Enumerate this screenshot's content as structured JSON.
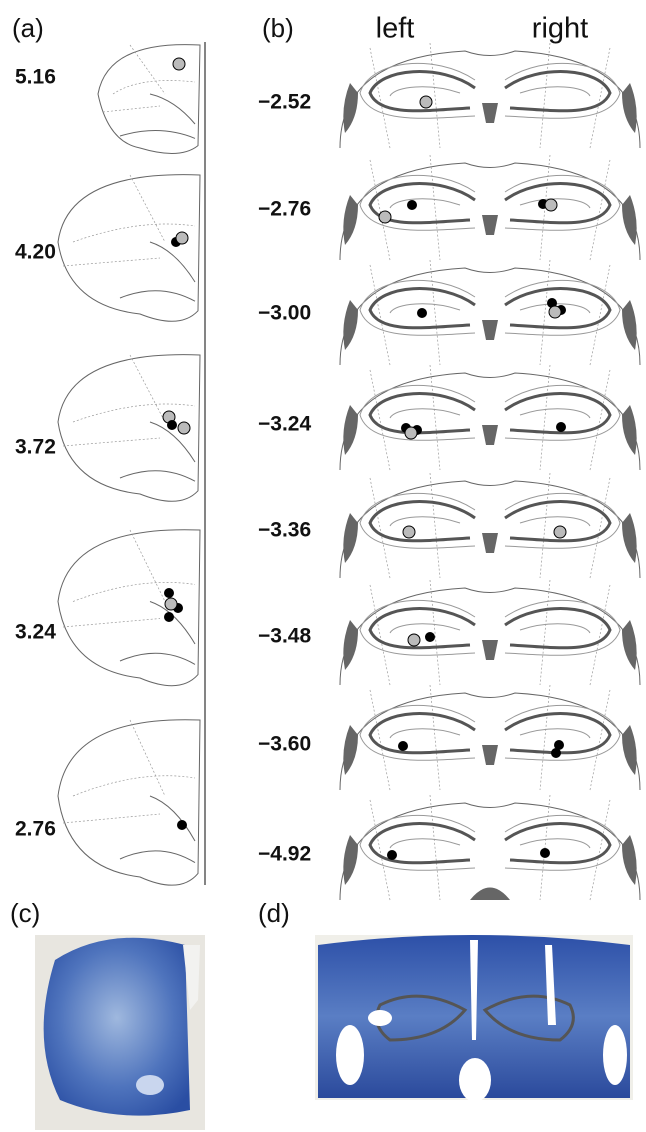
{
  "panels": [
    {
      "label": "(a)",
      "sections": [
        "5.16",
        "4.20",
        "3.72",
        "3.24",
        "2.76"
      ]
    },
    {
      "label": "(b)",
      "sides": [
        "left",
        "right"
      ],
      "sections": [
        "−2.52",
        "−2.76",
        "−3.00",
        "−3.24",
        "−3.36",
        "−3.48",
        "−3.60",
        "−4.92"
      ]
    },
    {
      "label": "(c)"
    },
    {
      "label": "(d)"
    }
  ]
}
